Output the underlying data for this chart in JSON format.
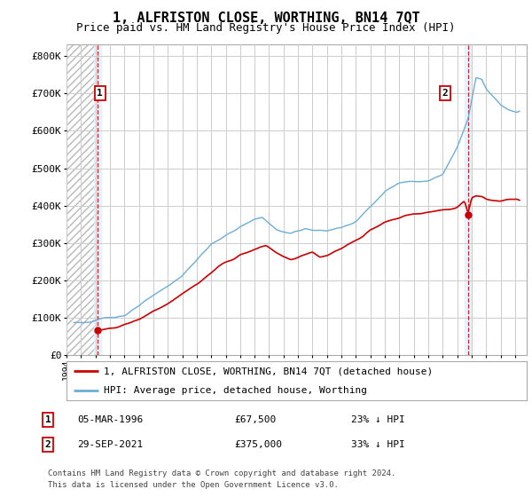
{
  "title": "1, ALFRISTON CLOSE, WORTHING, BN14 7QT",
  "subtitle": "Price paid vs. HM Land Registry's House Price Index (HPI)",
  "title_fontsize": 11,
  "subtitle_fontsize": 9,
  "ylabel_ticks": [
    "£0",
    "£100K",
    "£200K",
    "£300K",
    "£400K",
    "£500K",
    "£600K",
    "£700K",
    "£800K"
  ],
  "ytick_values": [
    0,
    100000,
    200000,
    300000,
    400000,
    500000,
    600000,
    700000,
    800000
  ],
  "ylim": [
    0,
    830000
  ],
  "xlim_start": 1994.0,
  "xlim_end": 2025.8,
  "sale1_x": 1996.17,
  "sale1_y": 67500,
  "sale1_label": "1",
  "sale2_x": 2021.75,
  "sale2_y": 375000,
  "sale2_label": "2",
  "hpi_line_color": "#6baed6",
  "price_line_color": "#cc0000",
  "sale_marker_color": "#cc0000",
  "legend_label1": "1, ALFRISTON CLOSE, WORTHING, BN14 7QT (detached house)",
  "legend_label2": "HPI: Average price, detached house, Worthing",
  "footer1": "Contains HM Land Registry data © Crown copyright and database right 2024.",
  "footer2": "This data is licensed under the Open Government Licence v3.0.",
  "grid_color": "#cccccc",
  "sale_vline_color": "#cc0000",
  "highlight_bg_color": "#ddeeff",
  "row1_date": "05-MAR-1996",
  "row1_price": "£67,500",
  "row1_pct": "23% ↓ HPI",
  "row2_date": "29-SEP-2021",
  "row2_price": "£375,000",
  "row2_pct": "33% ↓ HPI"
}
